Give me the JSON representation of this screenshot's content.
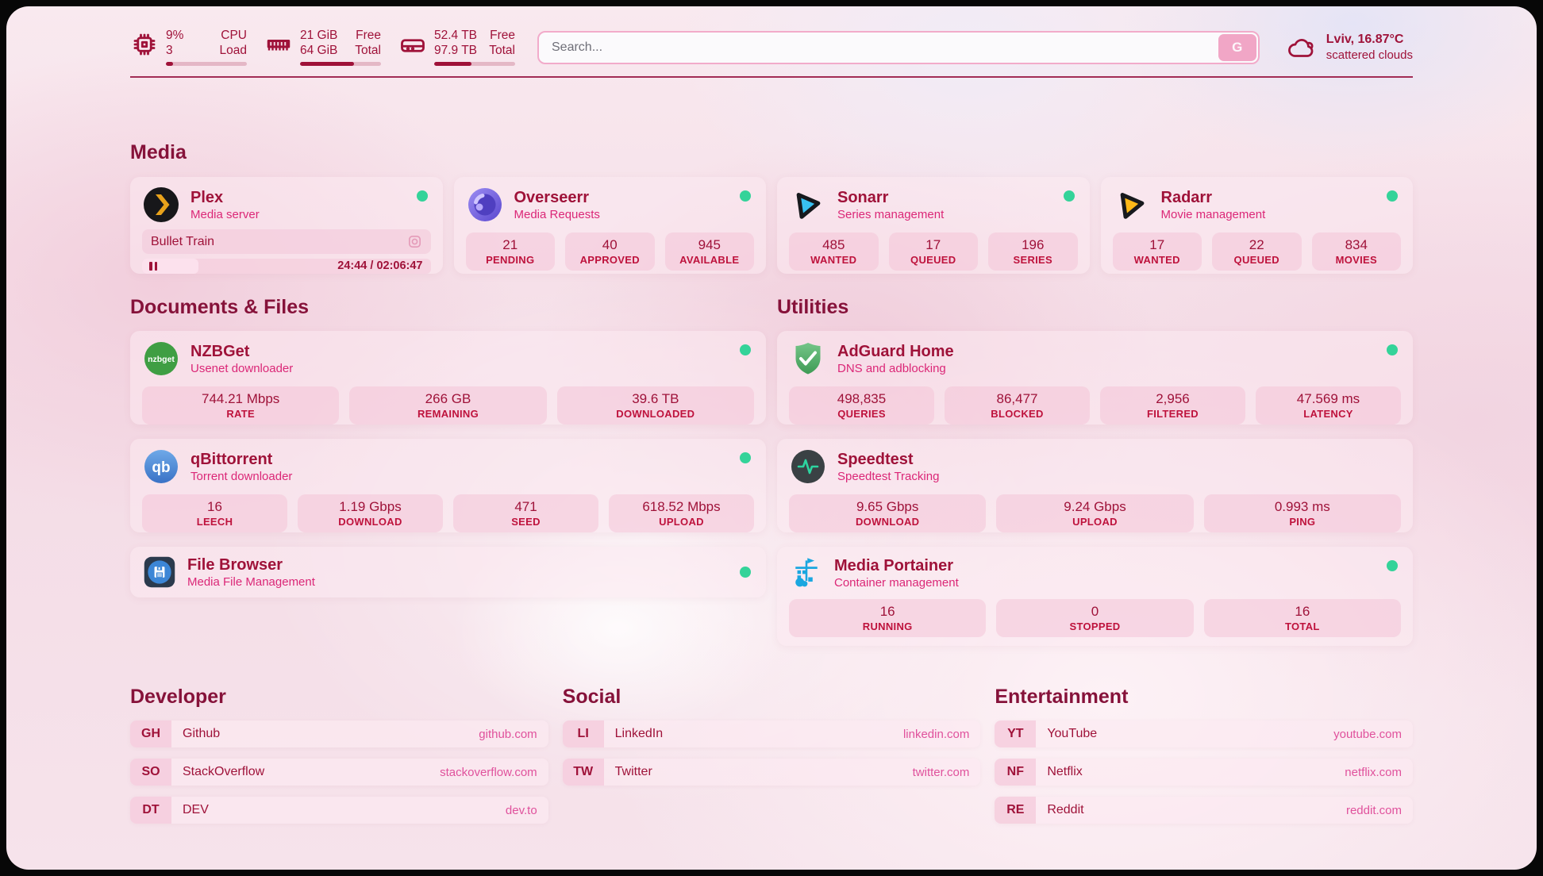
{
  "header": {
    "cpu": {
      "value_top": "9%",
      "value_bottom": "3",
      "label_top": "CPU",
      "label_bottom": "Load",
      "progress_pct": 9
    },
    "memory": {
      "value_top": "21 GiB",
      "value_bottom": "64 GiB",
      "label_top": "Free",
      "label_bottom": "Total",
      "progress_pct": 67
    },
    "disk": {
      "value_top": "52.4 TB",
      "value_bottom": "97.9 TB",
      "label_top": "Free",
      "label_bottom": "Total",
      "progress_pct": 46
    },
    "search": {
      "placeholder": "Search...",
      "button_label": "G"
    },
    "weather": {
      "location": "Lviv, 16.87°C",
      "condition": "scattered clouds"
    }
  },
  "sections": {
    "media": "Media",
    "documents": "Documents & Files",
    "utilities": "Utilities",
    "developer": "Developer",
    "social": "Social",
    "entertainment": "Entertainment"
  },
  "services": {
    "plex": {
      "name": "Plex",
      "subtitle": "Media server",
      "status": "online",
      "now_playing": "Bullet Train",
      "time_display": "24:44 / 02:06:47",
      "progress_pct": 19.5
    },
    "overseerr": {
      "name": "Overseerr",
      "subtitle": "Media Requests",
      "status": "online",
      "stats": [
        {
          "value": "21",
          "label": "PENDING"
        },
        {
          "value": "40",
          "label": "APPROVED"
        },
        {
          "value": "945",
          "label": "AVAILABLE"
        }
      ]
    },
    "sonarr": {
      "name": "Sonarr",
      "subtitle": "Series management",
      "status": "online",
      "stats": [
        {
          "value": "485",
          "label": "WANTED"
        },
        {
          "value": "17",
          "label": "QUEUED"
        },
        {
          "value": "196",
          "label": "SERIES"
        }
      ]
    },
    "radarr": {
      "name": "Radarr",
      "subtitle": "Movie management",
      "status": "online",
      "stats": [
        {
          "value": "17",
          "label": "WANTED"
        },
        {
          "value": "22",
          "label": "QUEUED"
        },
        {
          "value": "834",
          "label": "MOVIES"
        }
      ]
    },
    "nzbget": {
      "name": "NZBGet",
      "subtitle": "Usenet downloader",
      "status": "online",
      "icon_text": "nzbget",
      "stats": [
        {
          "value": "744.21 Mbps",
          "label": "RATE"
        },
        {
          "value": "266 GB",
          "label": "REMAINING"
        },
        {
          "value": "39.6 TB",
          "label": "DOWNLOADED"
        }
      ]
    },
    "qbittorrent": {
      "name": "qBittorrent",
      "subtitle": "Torrent downloader",
      "status": "online",
      "icon_text": "qb",
      "stats": [
        {
          "value": "16",
          "label": "LEECH"
        },
        {
          "value": "1.19 Gbps",
          "label": "DOWNLOAD"
        },
        {
          "value": "471",
          "label": "SEED"
        },
        {
          "value": "618.52 Mbps",
          "label": "UPLOAD"
        }
      ]
    },
    "filebrowser": {
      "name": "File Browser",
      "subtitle": "Media File Management",
      "status": "online"
    },
    "adguard": {
      "name": "AdGuard Home",
      "subtitle": "DNS and adblocking",
      "status": "online",
      "stats": [
        {
          "value": "498,835",
          "label": "QUERIES"
        },
        {
          "value": "86,477",
          "label": "BLOCKED"
        },
        {
          "value": "2,956",
          "label": "FILTERED"
        },
        {
          "value": "47.569 ms",
          "label": "LATENCY"
        }
      ]
    },
    "speedtest": {
      "name": "Speedtest",
      "subtitle": "Speedtest Tracking",
      "status": "online",
      "stats": [
        {
          "value": "9.65 Gbps",
          "label": "DOWNLOAD"
        },
        {
          "value": "9.24 Gbps",
          "label": "UPLOAD"
        },
        {
          "value": "0.993 ms",
          "label": "PING"
        }
      ]
    },
    "portainer": {
      "name": "Media Portainer",
      "subtitle": "Container management",
      "status": "online",
      "stats": [
        {
          "value": "16",
          "label": "RUNNING"
        },
        {
          "value": "0",
          "label": "STOPPED"
        },
        {
          "value": "16",
          "label": "TOTAL"
        }
      ]
    }
  },
  "bookmarks": {
    "developer": [
      {
        "abbr": "GH",
        "name": "Github",
        "url": "github.com"
      },
      {
        "abbr": "SO",
        "name": "StackOverflow",
        "url": "stackoverflow.com"
      },
      {
        "abbr": "DT",
        "name": "DEV",
        "url": "dev.to"
      }
    ],
    "social": [
      {
        "abbr": "LI",
        "name": "LinkedIn",
        "url": "linkedin.com"
      },
      {
        "abbr": "TW",
        "name": "Twitter",
        "url": "twitter.com"
      }
    ],
    "entertainment": [
      {
        "abbr": "YT",
        "name": "YouTube",
        "url": "youtube.com"
      },
      {
        "abbr": "NF",
        "name": "Netflix",
        "url": "netflix.com"
      },
      {
        "abbr": "RE",
        "name": "Reddit",
        "url": "reddit.com"
      }
    ]
  },
  "colors": {
    "accent": "#9f1239",
    "subtitle": "#db2777",
    "status_online": "#34d399"
  }
}
